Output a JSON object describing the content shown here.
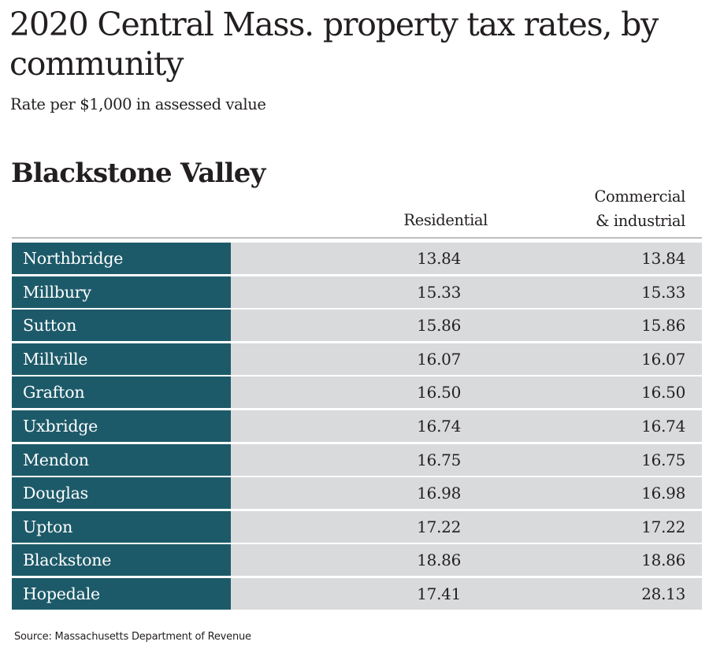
{
  "title": "2020 Central Mass. property tax rates, by community",
  "subtitle": "Rate per $1,000 in assessed value",
  "source": "Source: Massachusetts Department of Revenue",
  "chart_data": {
    "type": "table",
    "title": "2020 Central Mass. property tax rates, by community",
    "subtitle": "Rate per $1,000 in assessed value",
    "section": "Blackstone Valley",
    "columns": [
      "Residential",
      "Commercial & industrial"
    ],
    "column_lines": {
      "residential": "Residential",
      "commercial_line1": "Commercial",
      "commercial_line2": "& industrial"
    },
    "rows": [
      {
        "town": "Northbridge",
        "residential": "13.84",
        "commercial": "13.84"
      },
      {
        "town": "Millbury",
        "residential": "15.33",
        "commercial": "15.33"
      },
      {
        "town": "Sutton",
        "residential": "15.86",
        "commercial": "15.86"
      },
      {
        "town": "Millville",
        "residential": "16.07",
        "commercial": "16.07"
      },
      {
        "town": "Grafton",
        "residential": "16.50",
        "commercial": "16.50"
      },
      {
        "town": "Uxbridge",
        "residential": "16.74",
        "commercial": "16.74"
      },
      {
        "town": "Mendon",
        "residential": "16.75",
        "commercial": "16.75"
      },
      {
        "town": "Douglas",
        "residential": "16.98",
        "commercial": "16.98"
      },
      {
        "town": "Upton",
        "residential": "17.22",
        "commercial": "17.22"
      },
      {
        "town": "Blackstone",
        "residential": "18.86",
        "commercial": "18.86"
      },
      {
        "town": "Hopedale",
        "residential": "17.41",
        "commercial": "28.13"
      }
    ]
  },
  "colors": {
    "town_cell": "#1d5a69",
    "value_cell": "#d9dadc",
    "rule": "#bcbec0",
    "text": "#231f20"
  }
}
